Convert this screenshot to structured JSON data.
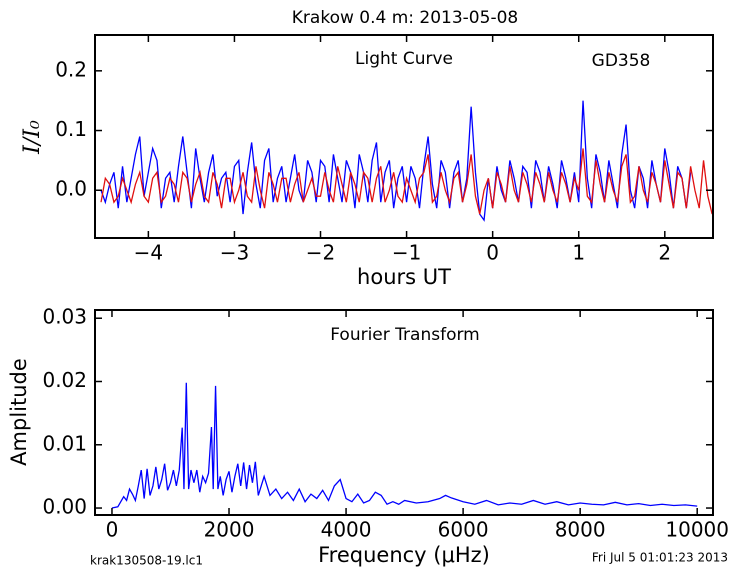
{
  "chart_data": [
    {
      "type": "line",
      "title": "Krakow 0.4 m:  2013-05-08",
      "annotations": [
        "Light Curve",
        "GD358"
      ],
      "xlabel": "hours UT",
      "ylabel": "I/I₀",
      "xlim": [
        -4.62,
        2.56
      ],
      "ylim": [
        -0.08,
        0.26
      ],
      "xticks": [
        {
          "value": -4,
          "label": "−4"
        },
        {
          "value": -3,
          "label": "−3"
        },
        {
          "value": -2,
          "label": "−2"
        },
        {
          "value": -1,
          "label": "−1"
        },
        0,
        1,
        2
      ],
      "yticks": [
        {
          "value": 0,
          "label": "0.0"
        },
        0.1,
        0.2
      ],
      "x": [
        -4.55,
        -4.5,
        -4.45,
        -4.4,
        -4.35,
        -4.3,
        -4.25,
        -4.2,
        -4.15,
        -4.1,
        -4.05,
        -4,
        -3.95,
        -3.9,
        -3.85,
        -3.8,
        -3.75,
        -3.7,
        -3.65,
        -3.6,
        -3.55,
        -3.5,
        -3.45,
        -3.4,
        -3.35,
        -3.3,
        -3.25,
        -3.2,
        -3.15,
        -3.1,
        -3.05,
        -3,
        -2.95,
        -2.9,
        -2.85,
        -2.8,
        -2.75,
        -2.7,
        -2.65,
        -2.6,
        -2.55,
        -2.5,
        -2.45,
        -2.4,
        -2.35,
        -2.3,
        -2.25,
        -2.2,
        -2.15,
        -2.1,
        -2.05,
        -2,
        -1.95,
        -1.9,
        -1.85,
        -1.8,
        -1.75,
        -1.7,
        -1.65,
        -1.6,
        -1.55,
        -1.5,
        -1.45,
        -1.4,
        -1.35,
        -1.3,
        -1.25,
        -1.2,
        -1.15,
        -1.1,
        -1.05,
        -1,
        -0.95,
        -0.9,
        -0.85,
        -0.8,
        -0.75,
        -0.7,
        -0.65,
        -0.6,
        -0.55,
        -0.5,
        -0.45,
        -0.4,
        -0.35,
        -0.3,
        -0.25,
        -0.2,
        -0.15,
        -0.1,
        -0.05,
        0,
        0.05,
        0.1,
        0.15,
        0.2,
        0.25,
        0.3,
        0.35,
        0.4,
        0.45,
        0.5,
        0.55,
        0.6,
        0.65,
        0.7,
        0.75,
        0.8,
        0.85,
        0.9,
        0.95,
        1,
        1.05,
        1.1,
        1.15,
        1.2,
        1.25,
        1.3,
        1.35,
        1.4,
        1.45,
        1.5,
        1.55,
        1.6,
        1.65,
        1.7,
        1.75,
        1.8,
        1.85,
        1.9,
        1.95,
        2,
        2.05,
        2.1,
        2.15,
        2.2,
        2.25,
        2.3,
        2.35,
        2.4,
        2.45,
        2.5,
        2.55
      ],
      "series": [
        {
          "color": "#0000ff",
          "values": [
            0,
            -0.02,
            0.01,
            0.03,
            -0.03,
            0.04,
            -0.02,
            0.02,
            0.06,
            0.09,
            -0.01,
            0.03,
            0.07,
            0.05,
            -0.03,
            0.02,
            0.03,
            -0.02,
            0.04,
            0.09,
            0.03,
            -0.03,
            0.07,
            0.02,
            -0.02,
            0.03,
            0.06,
            -0.01,
            0.02,
            0.03,
            -0.02,
            0.04,
            0.05,
            -0.04,
            0.03,
            0.08,
            0.01,
            -0.03,
            0.05,
            0.07,
            -0.02,
            0.02,
            0.04,
            -0.02,
            0.02,
            0.06,
            0,
            -0.02,
            0.05,
            0.03,
            -0.02,
            0.05,
            0.04,
            -0.02,
            0.06,
            0.02,
            -0.02,
            0.05,
            0.03,
            -0.03,
            0.06,
            0.03,
            -0.02,
            0.05,
            0.08,
            -0.02,
            0.03,
            0.05,
            -0.03,
            0.02,
            0.04,
            -0.02,
            0.04,
            0.02,
            -0.03,
            0.04,
            0.09,
            0.01,
            -0.03,
            0.05,
            0.03,
            -0.03,
            0.03,
            0.05,
            -0.02,
            0.02,
            0.14,
            0.03,
            -0.04,
            -0.05,
            0.02,
            -0.03,
            0.04,
            0,
            -0.02,
            0.05,
            0.02,
            -0.02,
            0.04,
            0.03,
            -0.03,
            0.05,
            0.03,
            -0.02,
            0.04,
            0.01,
            -0.03,
            0.05,
            0.02,
            -0.02,
            0.03,
            -0.02,
            0.15,
            0.02,
            -0.03,
            0.06,
            0.03,
            -0.02,
            0.05,
            0.01,
            -0.03,
            0.06,
            0.11,
            0,
            -0.03,
            0.04,
            0.02,
            -0.03,
            0.05,
            0.01,
            -0.02,
            0.07,
            0.03,
            -0.03,
            0.04,
            0.02,
            -0.03,
            0.03,
            null,
            null,
            null,
            null,
            null
          ]
        },
        {
          "color": "#e01010",
          "values": [
            -0.02,
            0.02,
            0.01,
            -0.02,
            -0.01,
            0.02,
            0,
            -0.02,
            0.01,
            0.03,
            -0.01,
            -0.02,
            0.02,
            0.03,
            -0.02,
            -0.01,
            0.02,
            0.01,
            -0.02,
            0.03,
            0.02,
            -0.02,
            0.01,
            0.03,
            -0.01,
            -0.02,
            0.03,
            0.01,
            -0.03,
            0.02,
            0.02,
            -0.02,
            0,
            0.03,
            -0.01,
            -0.02,
            0.04,
            0,
            -0.03,
            0.03,
            0.01,
            -0.02,
            0.02,
            0.02,
            -0.02,
            0.01,
            0.03,
            -0.02,
            0,
            0.02,
            -0.01,
            -0.01,
            0.03,
            0,
            -0.02,
            0.04,
            0.01,
            -0.02,
            0.03,
            0.01,
            -0.02,
            0.03,
            0.02,
            -0.02,
            0.02,
            0.04,
            -0.02,
            0,
            0.03,
            -0.01,
            -0.02,
            0.02,
            0,
            -0.02,
            0.02,
            0.03,
            0.06,
            -0.02,
            -0.01,
            0.03,
            0,
            -0.02,
            0.02,
            0.03,
            -0.02,
            0.01,
            0.06,
            -0.01,
            -0.04,
            0,
            0.02,
            -0.03,
            0.03,
            0.01,
            -0.02,
            0.04,
            0,
            -0.02,
            0.03,
            0.01,
            -0.02,
            0.03,
            0.01,
            -0.02,
            0.03,
            0,
            -0.02,
            0.03,
            0.01,
            -0.02,
            0.02,
            0,
            0.07,
            -0.01,
            -0.02,
            0.05,
            0.01,
            -0.02,
            0.03,
            0,
            -0.02,
            0.04,
            0.06,
            -0.02,
            -0.01,
            0.04,
            0,
            -0.02,
            0.03,
            0.01,
            -0.02,
            0.05,
            0.01,
            -0.03,
            0.03,
            0.02,
            -0.03,
            0.04,
            0,
            -0.03,
            0.05,
            -0.01,
            -0.04
          ]
        }
      ]
    },
    {
      "type": "line",
      "annotations": [
        "Fourier Transform"
      ],
      "xlabel": "Frequency (μHz)",
      "ylabel": "Amplitude",
      "xlim": [
        -290,
        10270
      ],
      "ylim": [
        -0.0011,
        0.0313
      ],
      "xticks": [
        0,
        2000,
        4000,
        6000,
        8000,
        10000
      ],
      "yticks": [
        {
          "value": 0,
          "label": "0.00"
        },
        0.01,
        0.02,
        0.03
      ],
      "x": [
        0,
        100,
        200,
        250,
        300,
        350,
        400,
        450,
        500,
        550,
        600,
        650,
        700,
        750,
        800,
        850,
        900,
        950,
        1000,
        1050,
        1100,
        1150,
        1200,
        1230,
        1270,
        1310,
        1350,
        1400,
        1450,
        1500,
        1550,
        1600,
        1650,
        1700,
        1730,
        1770,
        1810,
        1850,
        1900,
        1950,
        2000,
        2050,
        2100,
        2150,
        2200,
        2250,
        2300,
        2350,
        2400,
        2450,
        2500,
        2600,
        2700,
        2800,
        2900,
        3000,
        3100,
        3200,
        3300,
        3400,
        3500,
        3600,
        3700,
        3800,
        3900,
        4000,
        4100,
        4200,
        4300,
        4400,
        4500,
        4600,
        4700,
        4800,
        4900,
        5000,
        5200,
        5400,
        5600,
        5700,
        5800,
        6000,
        6200,
        6400,
        6600,
        6800,
        7000,
        7200,
        7400,
        7600,
        7800,
        8000,
        8200,
        8400,
        8600,
        8800,
        9000,
        9200,
        9400,
        9600,
        9800,
        10000
      ],
      "series": [
        {
          "color": "#0000ff",
          "values": [
            0,
            0.0002,
            0.0018,
            0.0012,
            0.003,
            0.0022,
            0.0012,
            0.0035,
            0.006,
            0.0015,
            0.0062,
            0.002,
            0.0035,
            0.0065,
            0.003,
            0.0045,
            0.007,
            0.0028,
            0.004,
            0.006,
            0.0035,
            0.006,
            0.0127,
            0.003,
            0.0198,
            0.003,
            0.006,
            0.004,
            0.006,
            0.0025,
            0.005,
            0.004,
            0.0055,
            0.0128,
            0.003,
            0.0193,
            0.003,
            0.005,
            0.002,
            0.0045,
            0.0058,
            0.0025,
            0.005,
            0.007,
            0.0035,
            0.0072,
            0.003,
            0.0068,
            0.004,
            0.0073,
            0.002,
            0.005,
            0.002,
            0.003,
            0.0015,
            0.0025,
            0.0012,
            0.003,
            0.001,
            0.0022,
            0.0015,
            0.0028,
            0.0012,
            0.0035,
            0.0045,
            0.0015,
            0.001,
            0.0022,
            0.0008,
            0.0012,
            0.0025,
            0.002,
            0.0006,
            0.001,
            0.0006,
            0.0012,
            0.0008,
            0.001,
            0.0015,
            0.002,
            0.0016,
            0.001,
            0.0006,
            0.0012,
            0.0005,
            0.0008,
            0.0006,
            0.0012,
            0.0006,
            0.001,
            0.0005,
            0.0008,
            0.0006,
            0.0005,
            0.0009,
            0.0005,
            0.0007,
            0.0004,
            0.0006,
            0.0004,
            0.0005,
            0.0003
          ]
        }
      ]
    }
  ],
  "footer": {
    "left": "krak130508-19.lc1",
    "right": "Fri Jul  5 01:01:23 2013"
  }
}
